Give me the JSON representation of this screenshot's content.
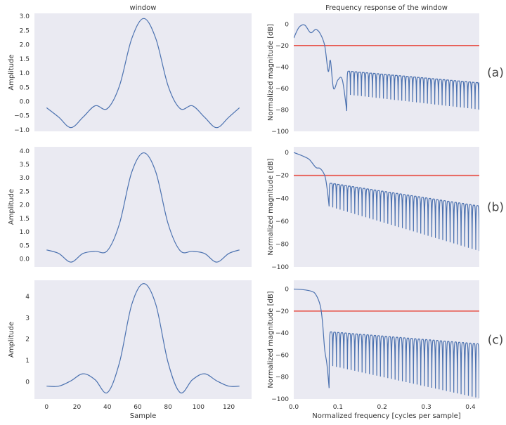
{
  "chart_data": [
    {
      "type": "line",
      "id": "window-a",
      "title": "window",
      "xlabel": "",
      "ylabel": "Amplitude",
      "xlim": [
        -8,
        135
      ],
      "ylim": [
        -1.05,
        3.1
      ],
      "yticks": [
        3.0,
        2.5,
        2.0,
        1.5,
        1.0,
        0.5,
        0.0,
        -0.5,
        -1.0
      ],
      "ytick_labels": [
        "3.0",
        "2.5",
        "2.0",
        "1.5",
        "1.0",
        "0.5",
        "0.0",
        "−0.5",
        "−1.0"
      ],
      "xticks": [],
      "xtick_labels": [],
      "x": [
        0,
        8,
        16,
        24,
        32,
        40,
        48,
        56,
        64,
        72,
        80,
        88,
        96,
        104,
        112,
        120,
        127
      ],
      "y": [
        -0.22,
        -0.55,
        -0.92,
        -0.55,
        -0.15,
        -0.25,
        0.55,
        2.2,
        2.92,
        2.2,
        0.55,
        -0.25,
        -0.15,
        -0.55,
        -0.92,
        -0.55,
        -0.22
      ],
      "series_color": "#4c72b0"
    },
    {
      "type": "line",
      "id": "response-a",
      "title": "Frequency response of the window",
      "xlabel": "",
      "ylabel": "Normalized magnitude [dB]",
      "xlim": [
        0,
        0.42
      ],
      "ylim": [
        -100,
        10
      ],
      "yticks": [
        0,
        -20,
        -40,
        -60,
        -80,
        -100
      ],
      "ytick_labels": [
        "0",
        "−20",
        "−40",
        "−60",
        "−80",
        "−100"
      ],
      "xticks": [],
      "xtick_labels": [],
      "reference_line": -20,
      "reference_color": "#e8534a",
      "x": [
        0,
        0.012,
        0.025,
        0.038,
        0.05,
        0.06,
        0.07,
        0.078,
        0.083,
        0.09,
        0.1,
        0.11,
        0.12
      ],
      "y": [
        -13,
        -3,
        -1,
        -8,
        -5,
        -9,
        -20,
        -44,
        -34,
        -60,
        -52,
        -52,
        -81
      ],
      "sidelobe_start": 0.12,
      "sidelobe_period": 0.0083,
      "sidelobe_peak_start": -44,
      "sidelobe_peak_end": -55,
      "null_depth_start": -66,
      "null_depth_end": -80,
      "series_color": "#4c72b0",
      "panel_label": "(a)"
    },
    {
      "type": "line",
      "id": "window-b",
      "title": "",
      "xlabel": "",
      "ylabel": "Amplitude",
      "xlim": [
        -8,
        135
      ],
      "ylim": [
        -0.3,
        4.15
      ],
      "yticks": [
        4.0,
        3.5,
        3.0,
        2.5,
        2.0,
        1.5,
        1.0,
        0.5,
        0.0
      ],
      "ytick_labels": [
        "4.0",
        "3.5",
        "3.0",
        "2.5",
        "2.0",
        "1.5",
        "1.0",
        "0.5",
        "0.0"
      ],
      "xticks": [],
      "xtick_labels": [],
      "x": [
        0,
        8,
        16,
        24,
        32,
        40,
        48,
        56,
        64,
        72,
        80,
        88,
        96,
        104,
        112,
        120,
        127
      ],
      "y": [
        0.33,
        0.2,
        -0.12,
        0.2,
        0.28,
        0.3,
        1.3,
        3.2,
        3.93,
        3.2,
        1.3,
        0.3,
        0.28,
        0.2,
        -0.12,
        0.2,
        0.33
      ],
      "series_color": "#4c72b0"
    },
    {
      "type": "line",
      "id": "response-b",
      "title": "",
      "xlabel": "",
      "ylabel": "Normalized magnitude [dB]",
      "xlim": [
        0,
        0.42
      ],
      "ylim": [
        -100,
        5
      ],
      "yticks": [
        0,
        -20,
        -40,
        -60,
        -80,
        -100
      ],
      "ytick_labels": [
        "0",
        "−20",
        "−40",
        "−60",
        "−80",
        "−100"
      ],
      "xticks": [],
      "xtick_labels": [],
      "reference_line": -20,
      "reference_color": "#e8534a",
      "x": [
        0,
        0.02,
        0.035,
        0.05,
        0.06,
        0.07,
        0.075,
        0.08
      ],
      "y": [
        0,
        -3,
        -6,
        -13,
        -14,
        -20,
        -30,
        -47
      ],
      "sidelobe_start": 0.08,
      "sidelobe_period": 0.0083,
      "sidelobe_peak_start": -27,
      "sidelobe_peak_end": -47,
      "null_depth_start": -48,
      "null_depth_end": -87,
      "series_color": "#4c72b0",
      "panel_label": "(b)"
    },
    {
      "type": "line",
      "id": "window-c",
      "title": "",
      "xlabel": "Sample",
      "ylabel": "Amplitude",
      "xlim": [
        -8,
        135
      ],
      "ylim": [
        -0.8,
        4.75
      ],
      "yticks": [
        4,
        3,
        2,
        1,
        0
      ],
      "ytick_labels": [
        "4",
        "3",
        "2",
        "1",
        "0"
      ],
      "xticks": [
        0,
        20,
        40,
        60,
        80,
        100,
        120
      ],
      "xtick_labels": [
        "0",
        "20",
        "40",
        "60",
        "80",
        "100",
        "120"
      ],
      "x": [
        0,
        8,
        16,
        24,
        32,
        40,
        48,
        56,
        64,
        72,
        80,
        88,
        96,
        104,
        112,
        120,
        127
      ],
      "y": [
        -0.2,
        -0.2,
        0.05,
        0.38,
        0.1,
        -0.5,
        0.9,
        3.6,
        4.6,
        3.6,
        0.9,
        -0.5,
        0.1,
        0.38,
        0.05,
        -0.2,
        -0.2
      ],
      "series_color": "#4c72b0"
    },
    {
      "type": "line",
      "id": "response-c",
      "title": "",
      "xlabel": "Normalized frequency [cycles per sample]",
      "ylabel": "Normalized magnitude [dB]",
      "xlim": [
        0,
        0.42
      ],
      "ylim": [
        -100,
        8
      ],
      "yticks": [
        0,
        -20,
        -40,
        -60,
        -80,
        -100
      ],
      "ytick_labels": [
        "0",
        "−20",
        "−40",
        "−60",
        "−80",
        "−100"
      ],
      "xticks": [
        0.0,
        0.1,
        0.2,
        0.3,
        0.4
      ],
      "xtick_labels": [
        "0.0",
        "0.1",
        "0.2",
        "0.3",
        "0.4"
      ],
      "reference_line": -20,
      "reference_color": "#e8534a",
      "x": [
        0,
        0.02,
        0.04,
        0.05,
        0.06,
        0.065,
        0.07,
        0.075,
        0.08
      ],
      "y": [
        0,
        -0.5,
        -2,
        -5,
        -15,
        -30,
        -55,
        -68,
        -90
      ],
      "sidelobe_start": 0.08,
      "sidelobe_period": 0.0083,
      "sidelobe_peak_start": -39,
      "sidelobe_peak_end": -50,
      "null_depth_start": -70,
      "null_depth_end": -100,
      "series_color": "#4c72b0",
      "panel_label": "(c)"
    }
  ],
  "style": {
    "background": "#eaeaf2",
    "text_color": "#333333"
  }
}
